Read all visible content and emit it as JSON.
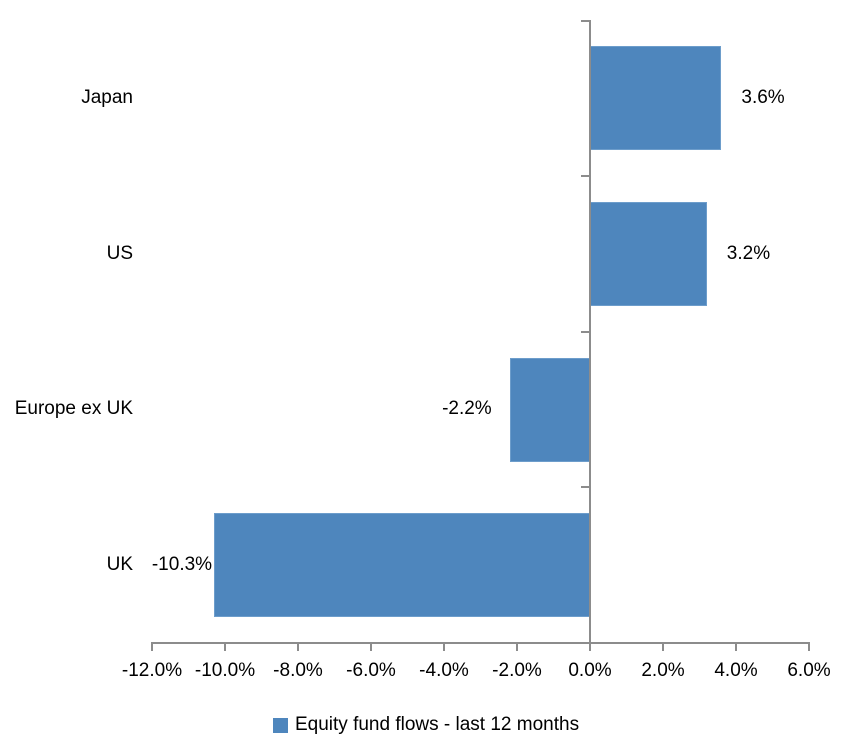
{
  "chart_data": {
    "type": "bar",
    "orientation": "horizontal",
    "title": "",
    "categories": [
      "Japan",
      "US",
      "Europe ex UK",
      "UK"
    ],
    "series": [
      {
        "name": "Equity fund flows - last 12 months",
        "values": [
          3.6,
          3.2,
          -2.2,
          -10.3
        ]
      }
    ],
    "data_labels": [
      "3.6%",
      "3.2%",
      "-2.2%",
      "-10.3%"
    ],
    "xlabel": "",
    "ylabel": "",
    "xlim": [
      -12,
      6
    ],
    "x_ticks": [
      -12,
      -10,
      -8,
      -6,
      -4,
      -2,
      0,
      2,
      4,
      6
    ],
    "x_tick_labels": [
      "-12.0%",
      "-10.0%",
      "-8.0%",
      "-6.0%",
      "-4.0%",
      "-2.0%",
      "0.0%",
      "2.0%",
      "4.0%",
      "6.0%"
    ],
    "grid": false,
    "legend_position": "bottom",
    "legend": {
      "label": "Equity fund flows - last 12 months"
    },
    "colors": {
      "bar": "#4E86BD",
      "bar_border": "#6D9DCB",
      "axis": "#8C8C8C",
      "text": "#000000",
      "background": "#FFFFFF"
    }
  }
}
